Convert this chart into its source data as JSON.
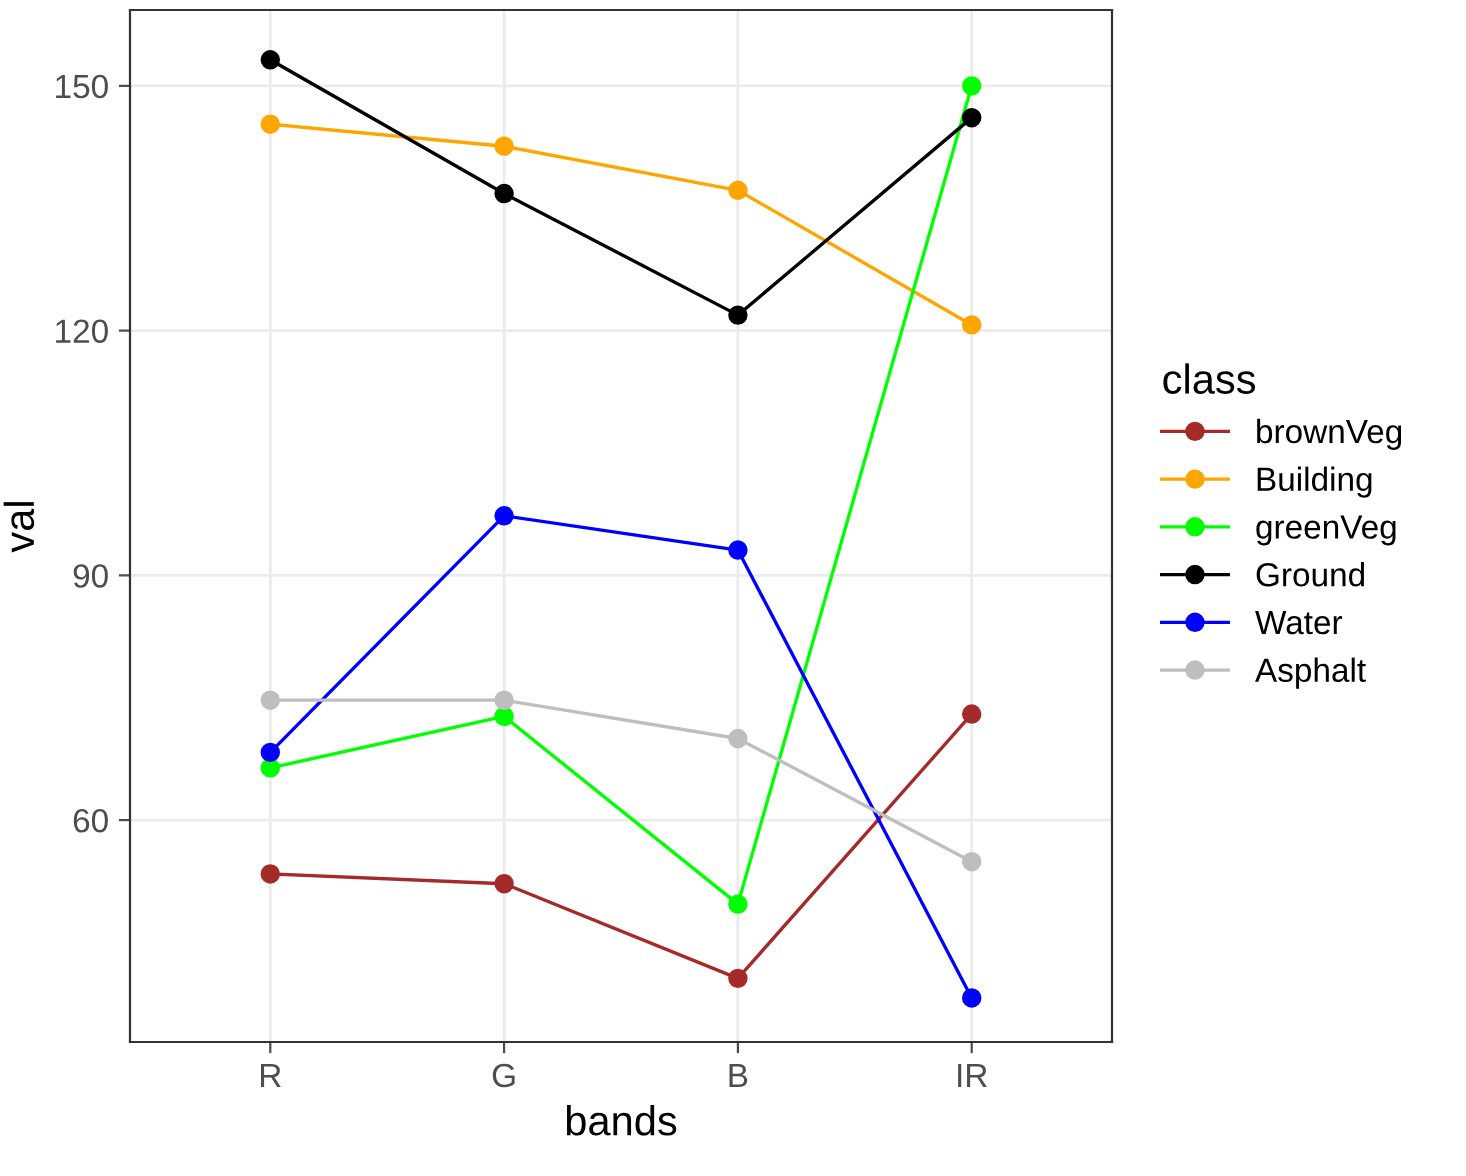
{
  "chart_data": {
    "type": "line",
    "xlabel": "bands",
    "ylabel": "val",
    "legend_title": "class",
    "categories": [
      "R",
      "G",
      "B",
      "IR"
    ],
    "series": [
      {
        "name": "brownVeg",
        "color": "#a52a2a",
        "values": [
          53.4,
          52.2,
          40.6,
          73.0
        ]
      },
      {
        "name": "Building",
        "color": "#ffa500",
        "values": [
          145.3,
          142.6,
          137.2,
          120.7
        ]
      },
      {
        "name": "greenVeg",
        "color": "#00ff00",
        "values": [
          66.4,
          72.7,
          49.7,
          150.0
        ]
      },
      {
        "name": "Ground",
        "color": "#000000",
        "values": [
          153.2,
          136.8,
          121.9,
          146.1
        ]
      },
      {
        "name": "Water",
        "color": "#0000ff",
        "values": [
          68.3,
          97.3,
          93.1,
          38.2
        ]
      },
      {
        "name": "Asphalt",
        "color": "#bebebe",
        "values": [
          74.7,
          74.7,
          70.0,
          54.9
        ]
      }
    ],
    "ylim": [
      32.8,
      159.3
    ],
    "yticks": [
      60,
      90,
      120,
      150
    ],
    "grid": true,
    "legend": "right",
    "marker": "circle",
    "line_style": "solid"
  }
}
